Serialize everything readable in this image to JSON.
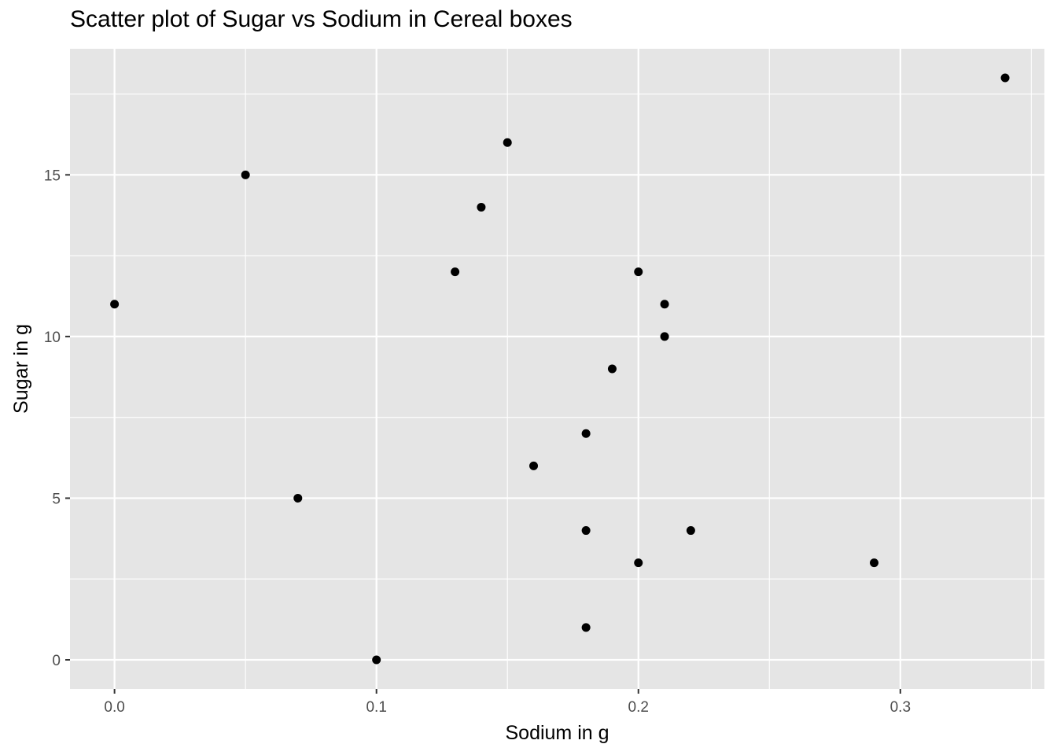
{
  "chart_data": {
    "type": "scatter",
    "title": "Scatter plot of Sugar vs Sodium in Cereal boxes",
    "xlabel": "Sodium in g",
    "ylabel": "Sugar in g",
    "xlim": [
      -0.017,
      0.355
    ],
    "ylim": [
      -0.9,
      18.9
    ],
    "x_major_ticks": [
      0.0,
      0.1,
      0.2,
      0.3
    ],
    "x_tick_labels": [
      "0.0",
      "0.1",
      "0.2",
      "0.3"
    ],
    "x_minor_ticks": [
      0.05,
      0.15,
      0.25,
      0.35
    ],
    "y_major_ticks": [
      0,
      5,
      10,
      15
    ],
    "y_tick_labels": [
      "0",
      "5",
      "10",
      "15"
    ],
    "y_minor_ticks": [
      2.5,
      7.5,
      12.5,
      17.5
    ],
    "grid": true,
    "legend": "none",
    "colors": {
      "panel_background": "#e5e5e5",
      "grid_line": "#ffffff",
      "point": "#000000",
      "tick_label": "#4d4d4d",
      "tick_mark": "#333333"
    },
    "series": [
      {
        "points": [
          {
            "x": 0.0,
            "y": 11
          },
          {
            "x": 0.05,
            "y": 15
          },
          {
            "x": 0.07,
            "y": 5
          },
          {
            "x": 0.1,
            "y": 0
          },
          {
            "x": 0.13,
            "y": 12
          },
          {
            "x": 0.14,
            "y": 14
          },
          {
            "x": 0.15,
            "y": 16
          },
          {
            "x": 0.16,
            "y": 6
          },
          {
            "x": 0.18,
            "y": 7
          },
          {
            "x": 0.18,
            "y": 4
          },
          {
            "x": 0.18,
            "y": 1
          },
          {
            "x": 0.19,
            "y": 9
          },
          {
            "x": 0.2,
            "y": 12
          },
          {
            "x": 0.2,
            "y": 3
          },
          {
            "x": 0.21,
            "y": 11
          },
          {
            "x": 0.21,
            "y": 10
          },
          {
            "x": 0.22,
            "y": 4
          },
          {
            "x": 0.29,
            "y": 3
          },
          {
            "x": 0.34,
            "y": 18
          }
        ]
      }
    ]
  }
}
